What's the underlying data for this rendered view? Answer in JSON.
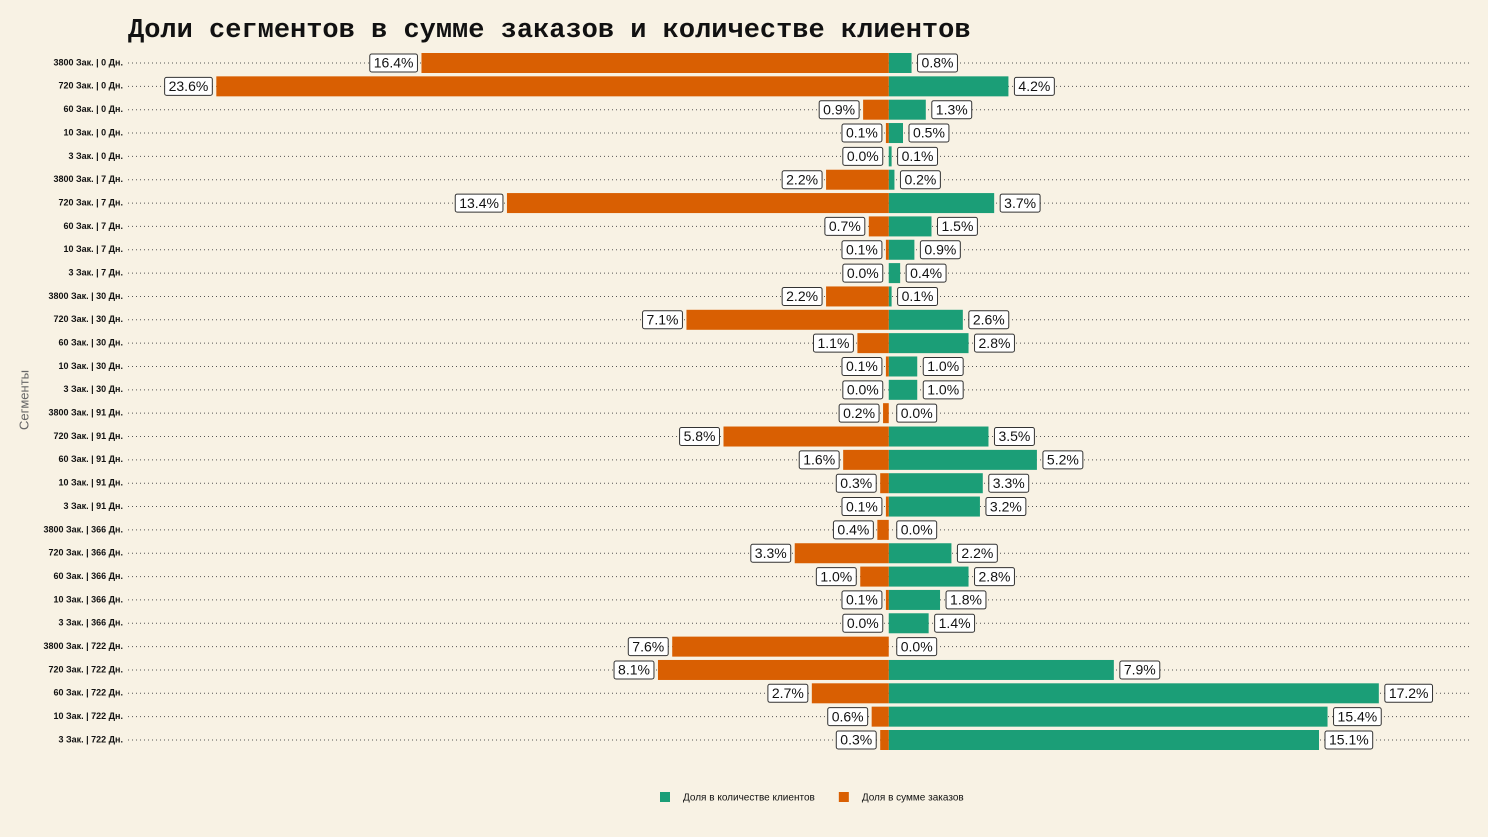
{
  "chart_data": {
    "type": "diverging-bar",
    "title": "Доли сегментов в сумме заказов и количестве клиентов",
    "y_label": "Сегменты",
    "categories": [
      "3800 Зак. | 0 Дн.",
      "720 Зак. | 0 Дн.",
      "60 Зак. | 0 Дн.",
      "10 Зак. | 0 Дн.",
      "3 Зак. | 0 Дн.",
      "3800 Зак. | 7 Дн.",
      "720 Зак. | 7 Дн.",
      "60 Зак. | 7 Дн.",
      "10 Зак. | 7 Дн.",
      "3 Зак. | 7 Дн.",
      "3800 Зак. | 30 Дн.",
      "720 Зак. | 30 Дн.",
      "60 Зак. | 30 Дн.",
      "10 Зак. | 30 Дн.",
      "3 Зак. | 30 Дн.",
      "3800 Зак. | 91 Дн.",
      "720 Зак. | 91 Дн.",
      "60 Зак. | 91 Дн.",
      "10 Зак. | 91 Дн.",
      "3 Зак. | 91 Дн.",
      "3800 Зак. | 366 Дн.",
      "720 Зак. | 366 Дн.",
      "60 Зак. | 366 Дн.",
      "10 Зак. | 366 Дн.",
      "3 Зак. | 366 Дн.",
      "3800 Зак. | 722 Дн.",
      "720 Зак. | 722 Дн.",
      "60 Зак. | 722 Дн.",
      "10 Зак. | 722 Дн.",
      "3 Зак. | 722 Дн."
    ],
    "series": [
      {
        "name": "Доля в количестве клиентов",
        "color": "#1b9e77",
        "values": [
          0.8,
          4.2,
          1.3,
          0.5,
          0.1,
          0.2,
          3.7,
          1.5,
          0.9,
          0.4,
          0.1,
          2.6,
          2.8,
          1.0,
          1.0,
          0.0,
          3.5,
          5.2,
          3.3,
          3.2,
          0.0,
          2.2,
          2.8,
          1.8,
          1.4,
          0.0,
          7.9,
          17.2,
          15.4,
          15.1
        ],
        "value_labels": [
          "0.8%",
          "4.2%",
          "1.3%",
          "0.5%",
          "0.1%",
          "0.2%",
          "3.7%",
          "1.5%",
          "0.9%",
          "0.4%",
          "0.1%",
          "2.6%",
          "2.8%",
          "1.0%",
          "1.0%",
          "0.0%",
          "3.5%",
          "5.2%",
          "3.3%",
          "3.2%",
          "0.0%",
          "2.2%",
          "2.8%",
          "1.8%",
          "1.4%",
          "0.0%",
          "7.9%",
          "17.2%",
          "15.4%",
          "15.1%"
        ]
      },
      {
        "name": "Доля в сумме заказов",
        "color": "#d95f02",
        "values": [
          16.4,
          23.6,
          0.9,
          0.1,
          0.0,
          2.2,
          13.4,
          0.7,
          0.1,
          0.0,
          2.2,
          7.1,
          1.1,
          0.1,
          0.0,
          0.2,
          5.8,
          1.6,
          0.3,
          0.1,
          0.4,
          3.3,
          1.0,
          0.1,
          0.0,
          7.6,
          8.1,
          2.7,
          0.6,
          0.3
        ],
        "value_labels": [
          "16.4%",
          "23.6%",
          "0.9%",
          "0.1%",
          "0.0%",
          "2.2%",
          "13.4%",
          "0.7%",
          "0.1%",
          "0.0%",
          "2.2%",
          "7.1%",
          "1.1%",
          "0.1%",
          "0.0%",
          "0.2%",
          "5.8%",
          "1.6%",
          "0.3%",
          "0.1%",
          "0.4%",
          "3.3%",
          "1.0%",
          "0.1%",
          "0.0%",
          "7.6%",
          "8.1%",
          "2.7%",
          "0.6%",
          "0.3%"
        ]
      }
    ],
    "xlim": [
      -26.7,
      20.4
    ]
  }
}
